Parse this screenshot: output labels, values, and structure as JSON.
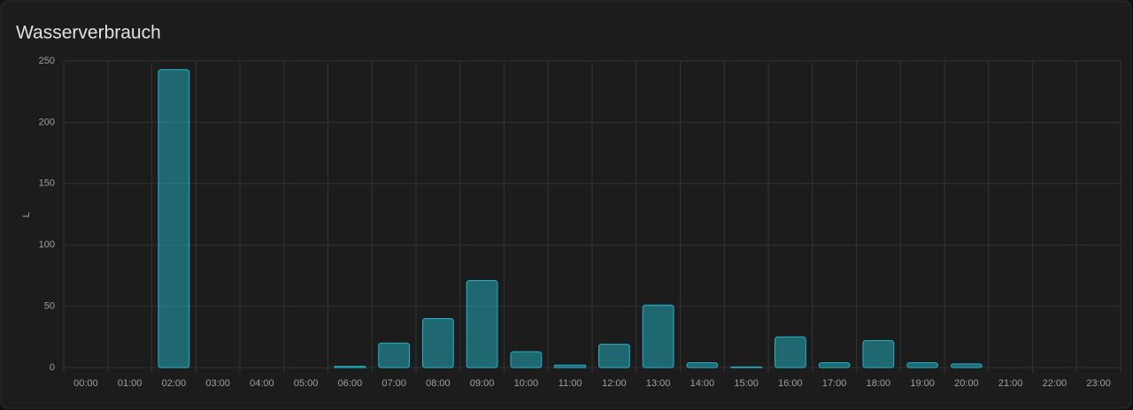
{
  "chart_data": {
    "type": "bar",
    "title": "Wasserverbrauch",
    "y_label": "L",
    "categories": [
      "00:00",
      "01:00",
      "02:00",
      "03:00",
      "04:00",
      "05:00",
      "06:00",
      "07:00",
      "08:00",
      "09:00",
      "10:00",
      "11:00",
      "12:00",
      "13:00",
      "14:00",
      "15:00",
      "16:00",
      "17:00",
      "18:00",
      "19:00",
      "20:00",
      "21:00",
      "22:00",
      "23:00"
    ],
    "values": [
      0,
      0,
      243,
      0,
      0,
      0,
      1,
      20,
      40,
      71,
      13,
      2,
      19,
      51,
      4,
      0.5,
      25,
      4,
      22,
      4,
      3,
      0,
      0,
      0
    ],
    "color": "#22b3c8",
    "ylim": [
      0,
      250
    ],
    "yticks": [
      0,
      50,
      100,
      150,
      200,
      250
    ],
    "grid": true
  }
}
